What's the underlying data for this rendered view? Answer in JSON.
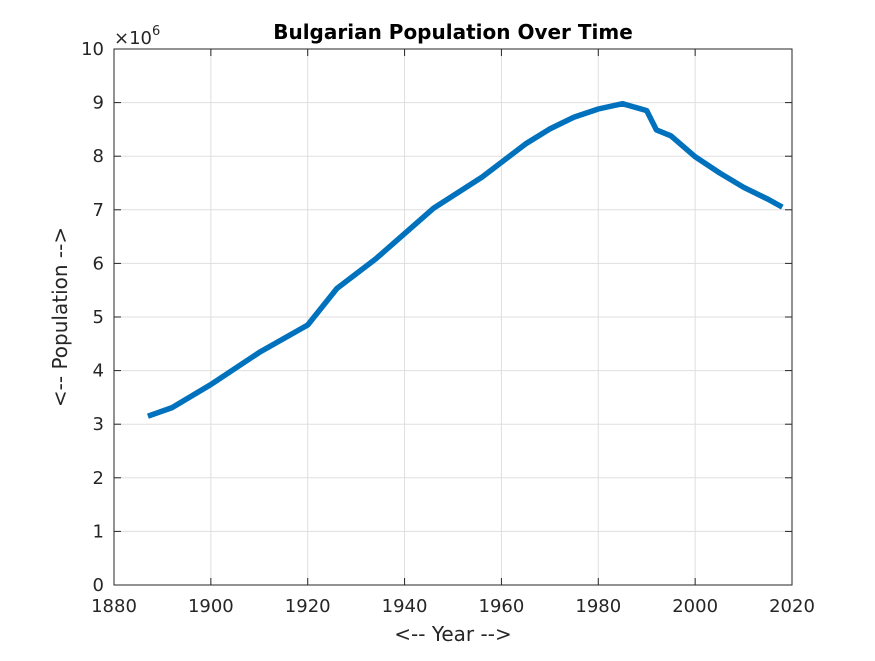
{
  "chart_data": {
    "type": "line",
    "title": "Bulgarian Population Over Time",
    "xlabel": "<-- Year -->",
    "ylabel": "<-- Population -->",
    "xlim": [
      1880,
      2020
    ],
    "ylim": [
      0,
      10
    ],
    "y_exponent_label": "×10",
    "y_exponent": "6",
    "x_ticks": [
      1880,
      1900,
      1920,
      1940,
      1960,
      1980,
      2000,
      2020
    ],
    "y_ticks": [
      0,
      1,
      2,
      3,
      4,
      5,
      6,
      7,
      8,
      9,
      10
    ],
    "grid": true,
    "series": [
      {
        "color": "#0072bd",
        "x": [
          1887,
          1892,
          1900,
          1910,
          1920,
          1926,
          1934,
          1946,
          1956,
          1965,
          1970,
          1975,
          1980,
          1985,
          1990,
          1992,
          1995,
          2000,
          2005,
          2010,
          2015,
          2018
        ],
        "y": [
          3.15,
          3.31,
          3.74,
          4.34,
          4.85,
          5.53,
          6.08,
          7.03,
          7.61,
          8.23,
          8.51,
          8.73,
          8.88,
          8.98,
          8.85,
          8.49,
          8.38,
          7.99,
          7.69,
          7.42,
          7.2,
          7.05
        ]
      }
    ]
  }
}
